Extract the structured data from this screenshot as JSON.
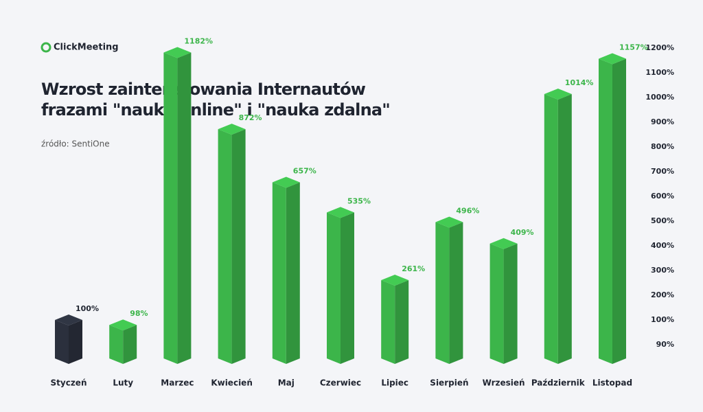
{
  "brand": "ClickMeeting",
  "chart_data": {
    "type": "bar3d",
    "title": "Wzrost zainteresowania Internautów",
    "title_line2": "frazami \"nauka online\" i \"nauka zdalna\"",
    "source": "źródło: SentiOne",
    "categories": [
      "Styczeń",
      "Luty",
      "Marzec",
      "Kwiecień",
      "Maj",
      "Czerwiec",
      "Lipiec",
      "Sierpień",
      "Wrzesień",
      "Październik",
      "Listopad"
    ],
    "values": [
      100,
      98,
      1182,
      872,
      657,
      535,
      261,
      496,
      409,
      1014,
      1157
    ],
    "value_labels": [
      "100%",
      "98%",
      "1182%",
      "872%",
      "657%",
      "535%",
      "261%",
      "496%",
      "409%",
      "1014%",
      "1157%"
    ],
    "colors": [
      "#2b303d",
      "#3cb54a",
      "#3cb54a",
      "#3cb54a",
      "#3cb54a",
      "#3cb54a",
      "#3cb54a",
      "#3cb54a",
      "#3cb54a",
      "#3cb54a",
      "#3cb54a"
    ],
    "ylim": [
      90,
      1200
    ],
    "yticks": [
      {
        "value": 90,
        "label": "90%"
      },
      {
        "value": 100,
        "label": "100%"
      },
      {
        "value": 200,
        "label": "200%"
      },
      {
        "value": 300,
        "label": "300%"
      },
      {
        "value": 400,
        "label": "400%"
      },
      {
        "value": 500,
        "label": "500%"
      },
      {
        "value": 600,
        "label": "600%"
      },
      {
        "value": 700,
        "label": "700%"
      },
      {
        "value": 800,
        "label": "800%"
      },
      {
        "value": 900,
        "label": "900%"
      },
      {
        "value": 1000,
        "label": "1000%"
      },
      {
        "value": 1100,
        "label": "1100%"
      },
      {
        "value": 1200,
        "label": "1200%"
      }
    ]
  }
}
